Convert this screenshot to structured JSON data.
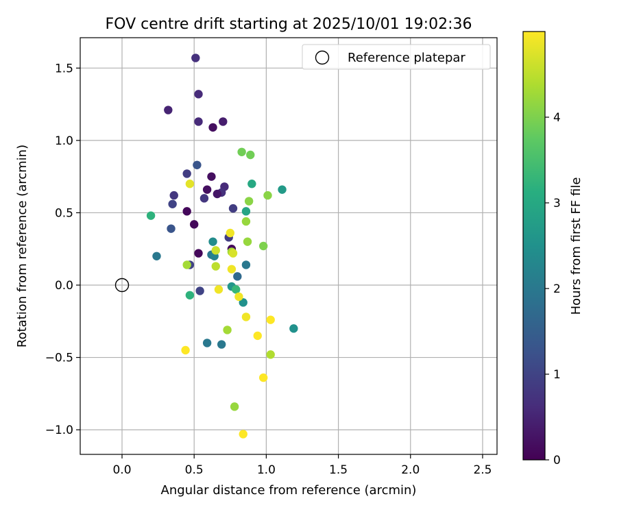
{
  "chart_data": {
    "type": "scatter",
    "title": "FOV centre drift starting at 2025/10/01 19:02:36",
    "xlabel": "Angular distance from reference (arcmin)",
    "ylabel": "Rotation from reference (arcmin)",
    "xlim": [
      -0.29,
      2.6
    ],
    "ylim": [
      -1.17,
      1.71
    ],
    "xticks": [
      0.0,
      0.5,
      1.0,
      1.5,
      2.0,
      2.5
    ],
    "xtick_labels": [
      "0.0",
      "0.5",
      "1.0",
      "1.5",
      "2.0",
      "2.5"
    ],
    "yticks": [
      -1.0,
      -0.5,
      0.0,
      0.5,
      1.0,
      1.5
    ],
    "ytick_labels": [
      "−1.0",
      "−0.5",
      "0.0",
      "0.5",
      "1.0",
      "1.5"
    ],
    "grid": true,
    "legend": {
      "position": "upper-right",
      "entries": [
        {
          "label": "Reference platepar",
          "marker": "open-circle",
          "color": "#000000"
        }
      ]
    },
    "reference_point": {
      "x": 0.0,
      "y": 0.0,
      "label": "Reference platepar"
    },
    "colorbar": {
      "label": "Hours from first FF file",
      "range": [
        0,
        5.0
      ],
      "ticks": [
        0,
        1,
        2,
        3,
        4
      ],
      "tick_labels": [
        "0",
        "1",
        "2",
        "3",
        "4"
      ],
      "colormap": "viridis"
    },
    "series": [
      {
        "name": "FOV centre",
        "points": [
          {
            "x": 0.51,
            "y": 1.57,
            "hours": 0.7
          },
          {
            "x": 0.53,
            "y": 1.32,
            "hours": 0.6
          },
          {
            "x": 0.32,
            "y": 1.21,
            "hours": 0.5
          },
          {
            "x": 0.53,
            "y": 1.13,
            "hours": 0.6
          },
          {
            "x": 0.7,
            "y": 1.13,
            "hours": 0.4
          },
          {
            "x": 0.63,
            "y": 1.09,
            "hours": 0.2
          },
          {
            "x": 0.52,
            "y": 0.83,
            "hours": 1.3
          },
          {
            "x": 0.45,
            "y": 0.77,
            "hours": 0.9
          },
          {
            "x": 0.62,
            "y": 0.75,
            "hours": 0.2
          },
          {
            "x": 0.59,
            "y": 0.66,
            "hours": 0.2
          },
          {
            "x": 0.71,
            "y": 0.68,
            "hours": 0.6
          },
          {
            "x": 0.69,
            "y": 0.64,
            "hours": 0.7
          },
          {
            "x": 0.66,
            "y": 0.63,
            "hours": 0.3
          },
          {
            "x": 0.57,
            "y": 0.6,
            "hours": 0.8
          },
          {
            "x": 0.36,
            "y": 0.62,
            "hours": 0.8
          },
          {
            "x": 0.35,
            "y": 0.56,
            "hours": 1.0
          },
          {
            "x": 0.45,
            "y": 0.51,
            "hours": 0.1
          },
          {
            "x": 0.77,
            "y": 0.53,
            "hours": 0.9
          },
          {
            "x": 0.5,
            "y": 0.42,
            "hours": 0.1
          },
          {
            "x": 0.34,
            "y": 0.39,
            "hours": 1.3
          },
          {
            "x": 0.74,
            "y": 0.33,
            "hours": 0.9
          },
          {
            "x": 0.53,
            "y": 0.22,
            "hours": 0.1
          },
          {
            "x": 0.76,
            "y": 0.25,
            "hours": 0.1
          },
          {
            "x": 0.24,
            "y": 0.2,
            "hours": 2.0
          },
          {
            "x": 0.47,
            "y": 0.14,
            "hours": 1.0
          },
          {
            "x": 0.62,
            "y": 0.21,
            "hours": 2.0
          },
          {
            "x": 0.64,
            "y": 0.2,
            "hours": 2.2
          },
          {
            "x": 0.63,
            "y": 0.3,
            "hours": 2.4
          },
          {
            "x": 0.8,
            "y": 0.06,
            "hours": 1.7
          },
          {
            "x": 0.86,
            "y": 0.14,
            "hours": 2.0
          },
          {
            "x": 0.54,
            "y": -0.04,
            "hours": 1.0
          },
          {
            "x": 0.2,
            "y": 0.48,
            "hours": 3.2
          },
          {
            "x": 0.86,
            "y": 0.51,
            "hours": 2.9
          },
          {
            "x": 0.9,
            "y": 0.7,
            "hours": 3.0
          },
          {
            "x": 1.11,
            "y": 0.66,
            "hours": 2.7
          },
          {
            "x": 0.76,
            "y": -0.01,
            "hours": 2.6
          },
          {
            "x": 0.79,
            "y": -0.03,
            "hours": 3.3
          },
          {
            "x": 0.84,
            "y": -0.12,
            "hours": 2.5
          },
          {
            "x": 0.47,
            "y": -0.07,
            "hours": 3.2
          },
          {
            "x": 1.19,
            "y": -0.3,
            "hours": 2.5
          },
          {
            "x": 0.59,
            "y": -0.4,
            "hours": 2.0
          },
          {
            "x": 0.69,
            "y": -0.41,
            "hours": 2.0
          },
          {
            "x": 0.83,
            "y": 0.92,
            "hours": 3.9
          },
          {
            "x": 0.89,
            "y": 0.9,
            "hours": 3.9
          },
          {
            "x": 1.01,
            "y": 0.62,
            "hours": 4.1
          },
          {
            "x": 0.88,
            "y": 0.58,
            "hours": 4.1
          },
          {
            "x": 0.86,
            "y": 0.44,
            "hours": 4.2
          },
          {
            "x": 0.87,
            "y": 0.3,
            "hours": 4.2
          },
          {
            "x": 0.98,
            "y": 0.27,
            "hours": 4.0
          },
          {
            "x": 0.45,
            "y": 0.14,
            "hours": 4.3
          },
          {
            "x": 0.65,
            "y": 0.13,
            "hours": 4.5
          },
          {
            "x": 0.65,
            "y": 0.24,
            "hours": 4.6
          },
          {
            "x": 0.76,
            "y": 0.23,
            "hours": 4.3
          },
          {
            "x": 0.77,
            "y": 0.22,
            "hours": 4.7
          },
          {
            "x": 0.73,
            "y": -0.31,
            "hours": 4.3
          },
          {
            "x": 1.03,
            "y": -0.48,
            "hours": 4.4
          },
          {
            "x": 0.78,
            "y": -0.84,
            "hours": 4.2
          },
          {
            "x": 0.47,
            "y": 0.7,
            "hours": 4.8
          },
          {
            "x": 0.75,
            "y": 0.36,
            "hours": 4.9
          },
          {
            "x": 0.76,
            "y": 0.11,
            "hours": 4.9
          },
          {
            "x": 0.67,
            "y": -0.03,
            "hours": 4.9
          },
          {
            "x": 0.81,
            "y": -0.08,
            "hours": 4.9
          },
          {
            "x": 0.86,
            "y": -0.22,
            "hours": 4.9
          },
          {
            "x": 1.03,
            "y": -0.24,
            "hours": 5.0
          },
          {
            "x": 0.94,
            "y": -0.35,
            "hours": 5.0
          },
          {
            "x": 0.44,
            "y": -0.45,
            "hours": 5.0
          },
          {
            "x": 0.98,
            "y": -0.64,
            "hours": 5.0
          },
          {
            "x": 0.84,
            "y": -1.03,
            "hours": 5.0
          }
        ]
      }
    ]
  }
}
